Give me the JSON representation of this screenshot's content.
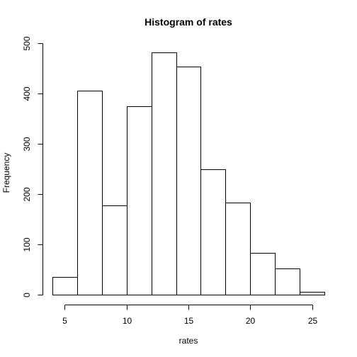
{
  "chart_data": {
    "type": "bar",
    "title": "Histogram of rates",
    "xlabel": "rates",
    "ylabel": "Frequency",
    "bin_edges": [
      4,
      6,
      8,
      10,
      12,
      14,
      16,
      18,
      20,
      22,
      24,
      26
    ],
    "values": [
      35,
      405,
      178,
      374,
      482,
      454,
      249,
      183,
      83,
      52,
      5
    ],
    "xticks": [
      5,
      10,
      15,
      20,
      25
    ],
    "yticks": [
      0,
      100,
      200,
      300,
      400,
      500
    ],
    "xlim": [
      4,
      26
    ],
    "ylim": [
      0,
      500
    ]
  }
}
